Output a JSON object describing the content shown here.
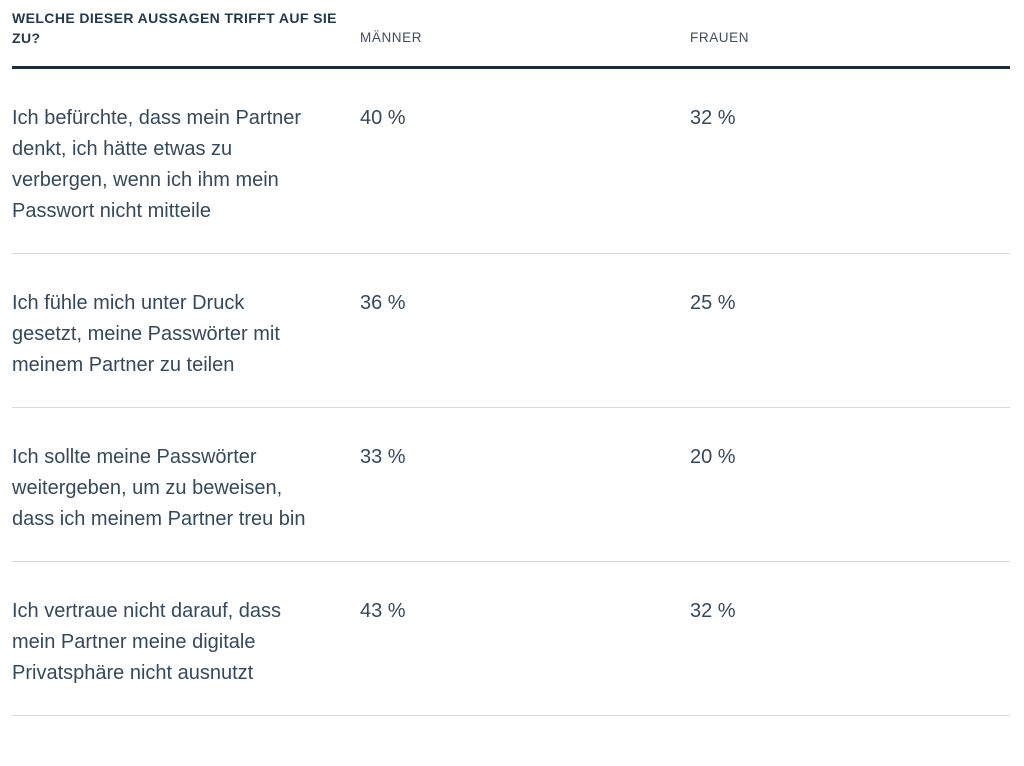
{
  "table": {
    "header": {
      "question_label": "WELCHE DIESER AUSSAGEN TRIFFT AUF SIE ZU?",
      "col_men": "MÄNNER",
      "col_women": "FRAUEN"
    },
    "rows": [
      {
        "statement": "Ich befürchte, dass mein Partner denkt, ich hätte etwas zu verbergen, wenn ich ihm mein Passwort nicht mitteile",
        "men": "40 %",
        "women": "32 %"
      },
      {
        "statement": "Ich fühle mich unter Druck gesetzt, meine Passwörter mit meinem Partner zu teilen",
        "men": "36 %",
        "women": "25 %"
      },
      {
        "statement": "Ich sollte meine Passwörter weitergeben, um zu beweisen, dass ich meinem Partner treu bin",
        "men": "33 %",
        "women": "20 %"
      },
      {
        "statement": "Ich vertraue nicht darauf, dass mein Partner meine digitale Privatsphäre nicht ausnutzt",
        "men": "43 %",
        "women": "32 %"
      }
    ]
  },
  "chart_data": {
    "type": "table",
    "title": "WELCHE DIESER AUSSAGEN TRIFFT AUF SIE ZU?",
    "categories": [
      "Ich befürchte, dass mein Partner denkt, ich hätte etwas zu verbergen, wenn ich ihm mein Passwort nicht mitteile",
      "Ich fühle mich unter Druck gesetzt, meine Passwörter mit meinem Partner zu teilen",
      "Ich sollte meine Passwörter weitergeben, um zu beweisen, dass ich meinem Partner treu bin",
      "Ich vertraue nicht darauf, dass mein Partner meine digitale Privatsphäre nicht ausnutzt"
    ],
    "series": [
      {
        "name": "MÄNNER",
        "values": [
          40,
          36,
          33,
          43
        ]
      },
      {
        "name": "FRAUEN",
        "values": [
          32,
          25,
          20,
          32
        ]
      }
    ],
    "unit": "%"
  },
  "colors": {
    "header_rule": "#1c2b3a",
    "title_text": "#22384c",
    "body_text": "#35495d",
    "column_label_text": "#3d4f61",
    "row_divider": "#d7dbdf",
    "background": "#ffffff"
  }
}
